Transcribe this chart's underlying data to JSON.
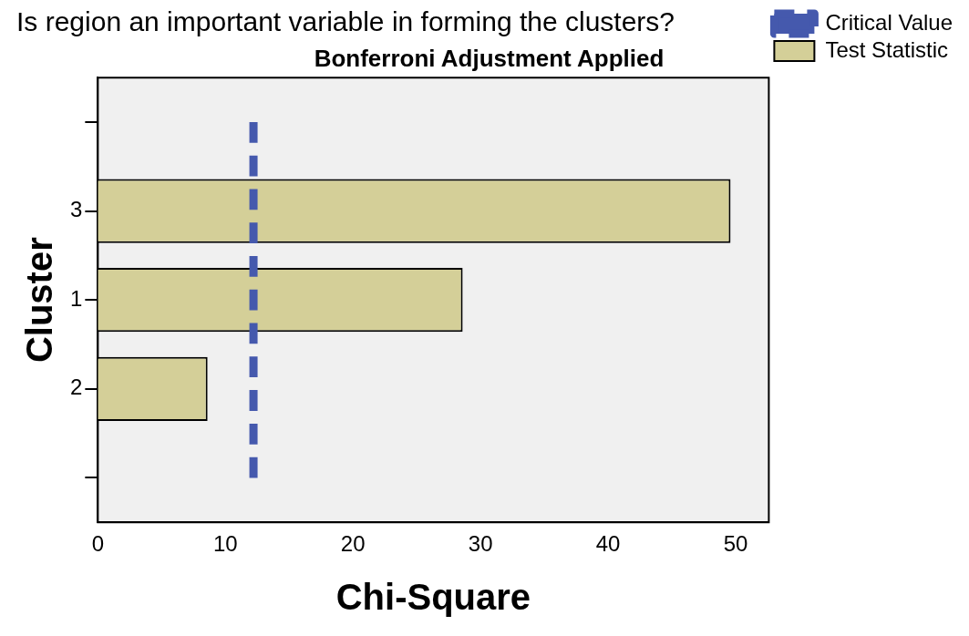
{
  "chart_data": {
    "type": "bar",
    "orientation": "horizontal",
    "title": "Is region an important variable in forming the clusters?",
    "subtitle": "Bonferroni Adjustment Applied",
    "xlabel": "Chi-Square",
    "ylabel": "Cluster",
    "categories": [
      null,
      "3",
      "1",
      "2",
      null
    ],
    "series": [
      {
        "name": "Critical Value",
        "type": "line",
        "color": "#4559ad",
        "line_style": "dashed",
        "marker": "none",
        "values": [
          12.2,
          12.2,
          12.2,
          12.2,
          12.2
        ]
      },
      {
        "name": "Test Statistic",
        "color": "#d4cf98",
        "values": [
          null,
          49.6,
          28.6,
          8.6,
          null
        ]
      }
    ],
    "xlim": [
      0,
      52.6
    ],
    "xticks": [
      0,
      10,
      20,
      30,
      40,
      50
    ],
    "grid": false,
    "legend": "top right"
  }
}
